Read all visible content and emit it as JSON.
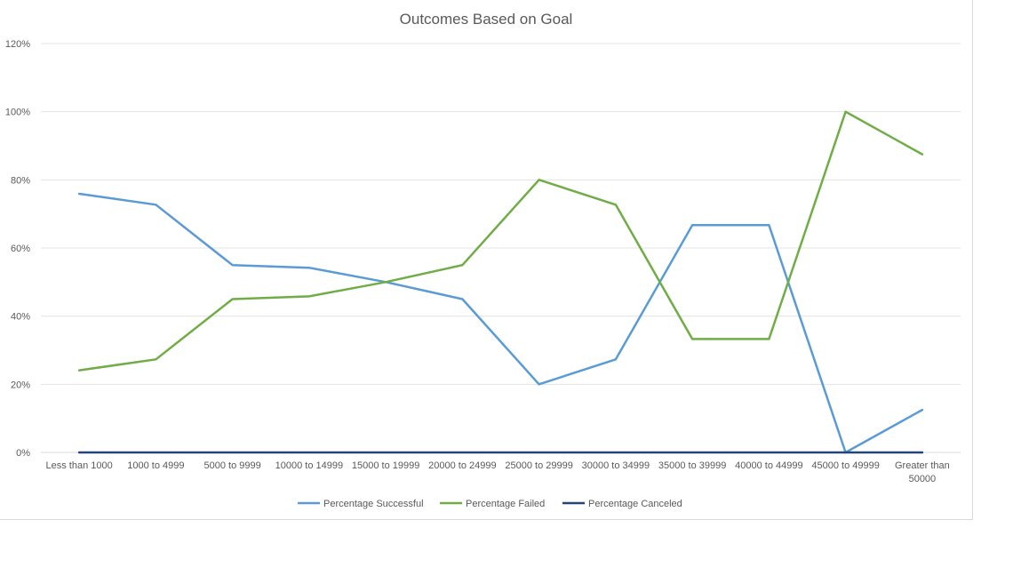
{
  "chart_data": {
    "type": "line",
    "title": "Outcomes Based on Goal",
    "xlabel": "",
    "ylabel": "",
    "categories": [
      "Less than 1000",
      "1000 to 4999",
      "5000 to 9999",
      "10000 to 14999",
      "15000 to 19999",
      "20000 to 24999",
      "25000 to 29999",
      "30000 to 34999",
      "35000 to 39999",
      "40000 to 44999",
      "45000 to 49999",
      "Greater than 50000"
    ],
    "category_lines": [
      [
        "Less than 1000"
      ],
      [
        "1000 to 4999"
      ],
      [
        "5000 to 9999"
      ],
      [
        "10000 to 14999"
      ],
      [
        "15000 to 19999"
      ],
      [
        "20000 to 24999"
      ],
      [
        "25000 to 29999"
      ],
      [
        "30000 to 34999"
      ],
      [
        "35000 to 39999"
      ],
      [
        "40000 to 44999"
      ],
      [
        "45000 to 49999"
      ],
      [
        "Greater than",
        "50000"
      ]
    ],
    "ylim": [
      0,
      1.2
    ],
    "yticks": [
      0,
      0.2,
      0.4,
      0.6,
      0.8,
      1.0,
      1.2
    ],
    "ytick_labels": [
      "0%",
      "20%",
      "40%",
      "60%",
      "80%",
      "100%",
      "120%"
    ],
    "grid": true,
    "legend_position": "bottom",
    "series": [
      {
        "name": "Percentage Successful",
        "color": "#5b9bd5",
        "values": [
          0.759,
          0.727,
          0.55,
          0.542,
          0.5,
          0.45,
          0.2,
          0.273,
          0.667,
          0.667,
          0.0,
          0.125
        ]
      },
      {
        "name": "Percentage Failed",
        "color": "#70ad47",
        "values": [
          0.241,
          0.273,
          0.45,
          0.458,
          0.5,
          0.55,
          0.8,
          0.727,
          0.333,
          0.333,
          1.0,
          0.875
        ]
      },
      {
        "name": "Percentage Canceled",
        "color": "#264478",
        "values": [
          0,
          0,
          0,
          0,
          0,
          0,
          0,
          0,
          0,
          0,
          0,
          0
        ]
      }
    ]
  }
}
